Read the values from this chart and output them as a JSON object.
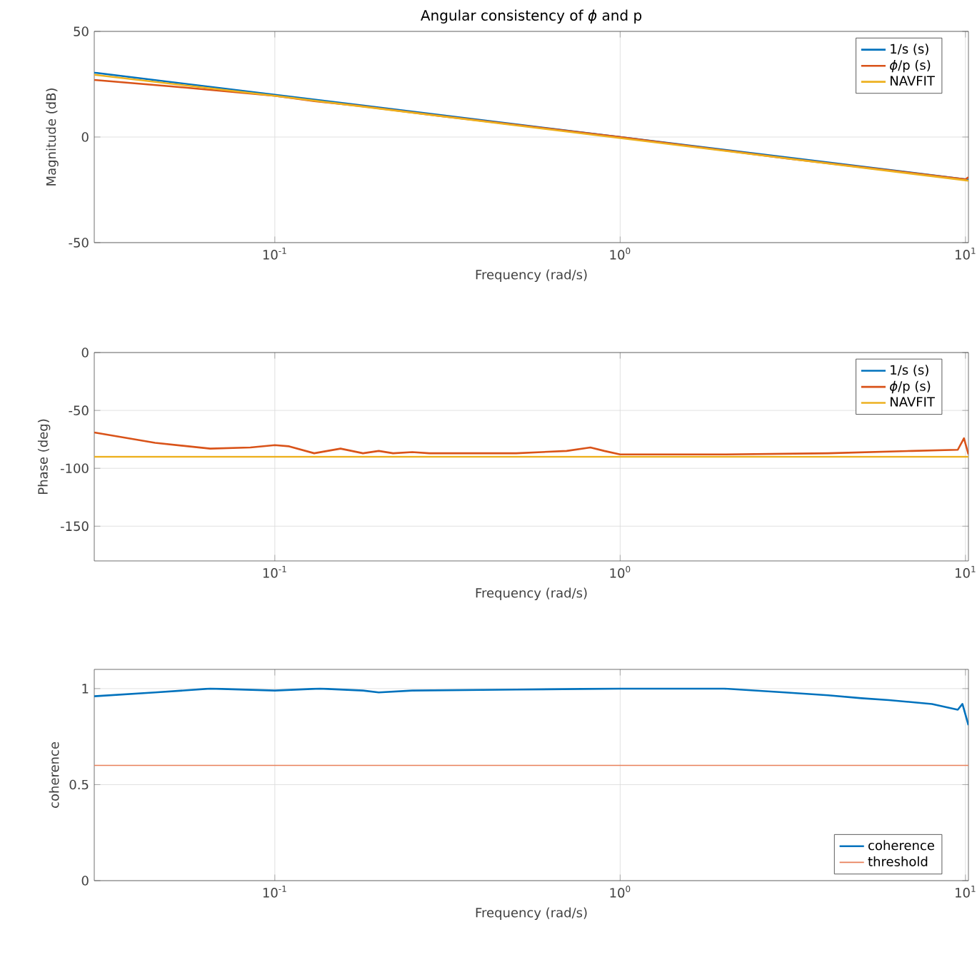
{
  "chart_data": [
    {
      "type": "line",
      "title": "Angular consistency of *ϕ* and p",
      "xlabel": "Frequency (rad/s)",
      "ylabel": "Magnitude (dB)",
      "log": "x",
      "grid": true,
      "legend": "top right",
      "xlim": [
        0.03,
        10.2
      ],
      "xticks": [
        {
          "value": 0.1,
          "label": "10$^{-1}$"
        },
        {
          "value": 1,
          "label": "10$^{0}$"
        },
        {
          "value": 10,
          "label": "10$^{1}$"
        }
      ],
      "ylim": [
        -50,
        50
      ],
      "yticks": [
        -50,
        0,
        50
      ],
      "series": [
        {
          "name": "1/s (s)",
          "color": "#0072bd",
          "x": [
            0.03,
            0.1,
            1,
            10,
            10.2
          ],
          "values": [
            30.5,
            20,
            0,
            -20,
            -20.2
          ]
        },
        {
          "name": "*ϕ*/p (s)",
          "color": "#d95319",
          "x": [
            0.03,
            0.05,
            0.1,
            0.13,
            0.17,
            0.3,
            1,
            3,
            10,
            10.2
          ],
          "values": [
            27,
            24,
            19.5,
            17,
            15,
            10,
            0,
            -10,
            -20,
            -19
          ]
        },
        {
          "name": "NAVFIT",
          "color": "#edb120",
          "x": [
            0.03,
            0.1,
            1,
            10,
            10.2
          ],
          "values": [
            29.5,
            19.5,
            -0.5,
            -20.5,
            -20.7
          ]
        }
      ]
    },
    {
      "type": "line",
      "xlabel": "Frequency (rad/s)",
      "ylabel": "Phase (deg)",
      "log": "x",
      "grid": true,
      "legend": "top right",
      "xlim": [
        0.03,
        10.2
      ],
      "xticks": [
        {
          "value": 0.1,
          "label": "10$^{-1}$"
        },
        {
          "value": 1,
          "label": "10$^{0}$"
        },
        {
          "value": 10,
          "label": "10$^{1}$"
        }
      ],
      "ylim": [
        -180,
        0
      ],
      "yticks": [
        -150,
        -100,
        -50,
        0
      ],
      "series": [
        {
          "name": "1/s (s)",
          "color": "#0072bd"
        },
        {
          "name": "*ϕ*/p (s)",
          "color": "#d95319",
          "x": [
            0.03,
            0.045,
            0.065,
            0.085,
            0.1,
            0.11,
            0.13,
            0.155,
            0.18,
            0.2,
            0.22,
            0.25,
            0.28,
            0.3,
            0.5,
            0.7,
            0.82,
            0.9,
            1,
            2,
            4,
            7,
            9.5,
            9.9,
            10.2
          ],
          "values": [
            -69,
            -78,
            -83,
            -82,
            -80,
            -81,
            -87,
            -83,
            -87,
            -85,
            -87,
            -86,
            -87,
            -87,
            -87,
            -85,
            -82,
            -85,
            -88,
            -88,
            -87,
            -85,
            -84,
            -74,
            -88
          ]
        },
        {
          "name": "NAVFIT",
          "color": "#edb120",
          "x": [
            0.03,
            10.2
          ],
          "values": [
            -90,
            -90
          ]
        }
      ]
    },
    {
      "type": "line",
      "xlabel": "Frequency (rad/s)",
      "ylabel": "coherence",
      "log": "x",
      "grid": true,
      "legend": "bottom right",
      "xlim": [
        0.03,
        10.2
      ],
      "xticks": [
        {
          "value": 0.1,
          "label": "10$^{-1}$"
        },
        {
          "value": 1,
          "label": "10$^{0}$"
        },
        {
          "value": 10,
          "label": "10$^{1}$"
        }
      ],
      "ylim": [
        0,
        1.1
      ],
      "yticks": [
        0,
        0.5,
        1
      ],
      "series": [
        {
          "name": "coherence",
          "color": "#0072bd",
          "x": [
            0.03,
            0.045,
            0.065,
            0.1,
            0.135,
            0.18,
            0.2,
            0.25,
            0.5,
            1,
            2,
            3,
            4,
            5,
            6,
            8,
            9.5,
            9.8,
            10.2
          ],
          "values": [
            0.96,
            0.98,
            1.0,
            0.99,
            1.0,
            0.99,
            0.98,
            0.99,
            0.995,
            1.0,
            1.0,
            0.98,
            0.965,
            0.95,
            0.94,
            0.92,
            0.89,
            0.92,
            0.81
          ]
        },
        {
          "name": "threshold",
          "color": "#e8805a",
          "x": [
            0.03,
            10.2
          ],
          "values": [
            0.6,
            0.6
          ]
        }
      ]
    }
  ]
}
